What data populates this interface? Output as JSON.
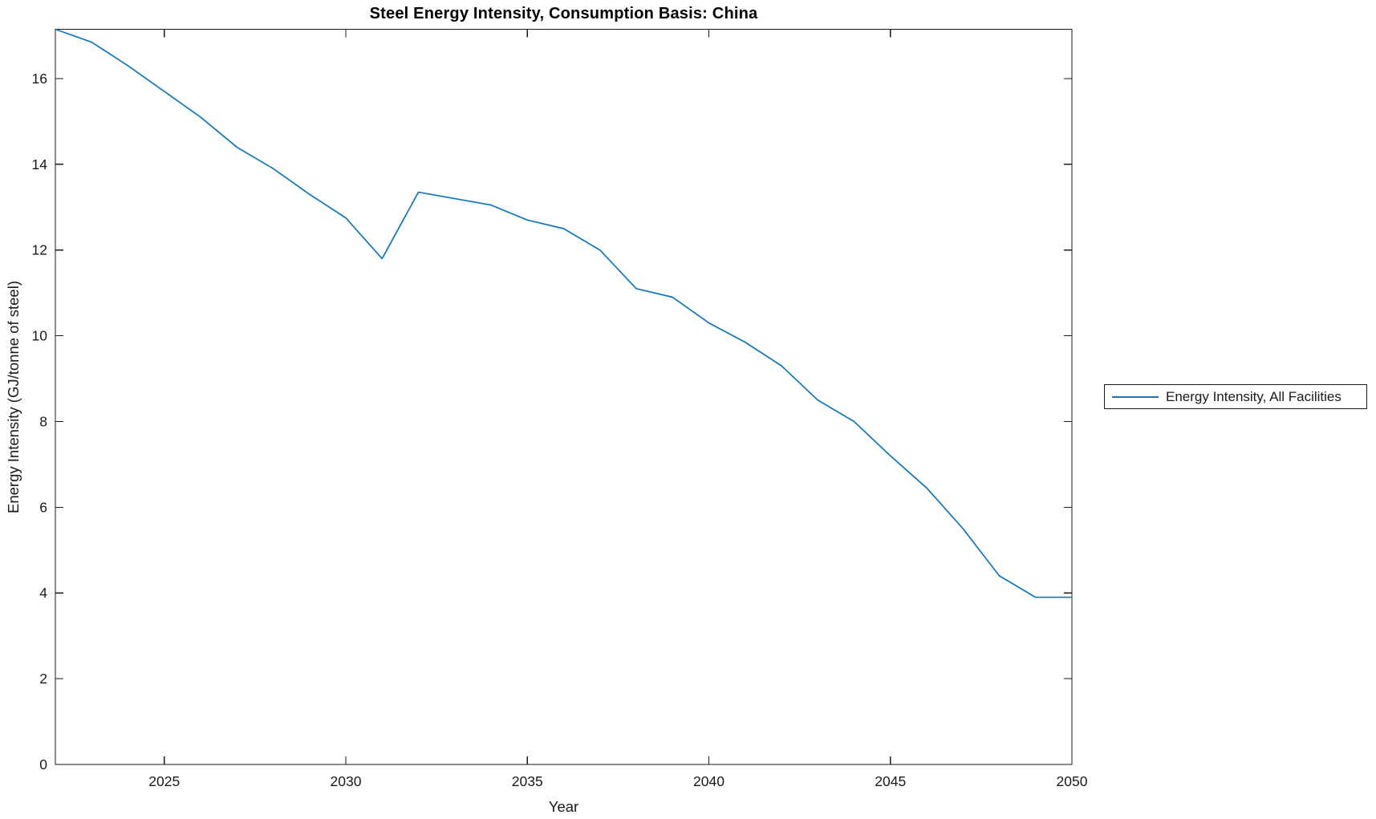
{
  "figure": {
    "title": "Steel Energy Intensity, Consumption Basis: China",
    "background_color": "#ffffff",
    "axis_color": "#1a1a1a",
    "line_color": "#0e76c0"
  },
  "legend": {
    "entries": [
      {
        "label": "Energy Intensity, All Facilities",
        "color": "#0e76c0"
      }
    ],
    "position": "right-outside",
    "border": true
  },
  "chart_data": {
    "type": "line",
    "title": "Steel Energy Intensity, Consumption Basis: China",
    "xlabel": "Year",
    "ylabel": "Energy Intensity (GJ/tonne of steel)",
    "x": [
      2022,
      2023,
      2024,
      2025,
      2026,
      2027,
      2028,
      2029,
      2030,
      2031,
      2032,
      2033,
      2034,
      2035,
      2036,
      2037,
      2038,
      2039,
      2040,
      2041,
      2042,
      2043,
      2044,
      2045,
      2046,
      2047,
      2048,
      2049,
      2050
    ],
    "series": [
      {
        "name": "Energy Intensity, All Facilities",
        "values": [
          17.15,
          16.85,
          16.3,
          15.7,
          15.1,
          14.4,
          13.9,
          13.3,
          12.75,
          11.8,
          13.35,
          13.2,
          13.05,
          12.7,
          12.5,
          12.0,
          11.1,
          10.9,
          10.3,
          9.85,
          9.3,
          8.5,
          8.0,
          7.2,
          6.45,
          5.5,
          4.4,
          3.9,
          3.9
        ]
      }
    ],
    "xlim": [
      2022,
      2050
    ],
    "ylim": [
      0,
      17.15
    ],
    "xticks": [
      2025,
      2030,
      2035,
      2040,
      2045,
      2050
    ],
    "yticks": [
      0,
      2,
      4,
      6,
      8,
      10,
      12,
      14,
      16
    ],
    "grid": false,
    "box": true,
    "tick_direction": "in",
    "legend_position": "right-outside"
  }
}
